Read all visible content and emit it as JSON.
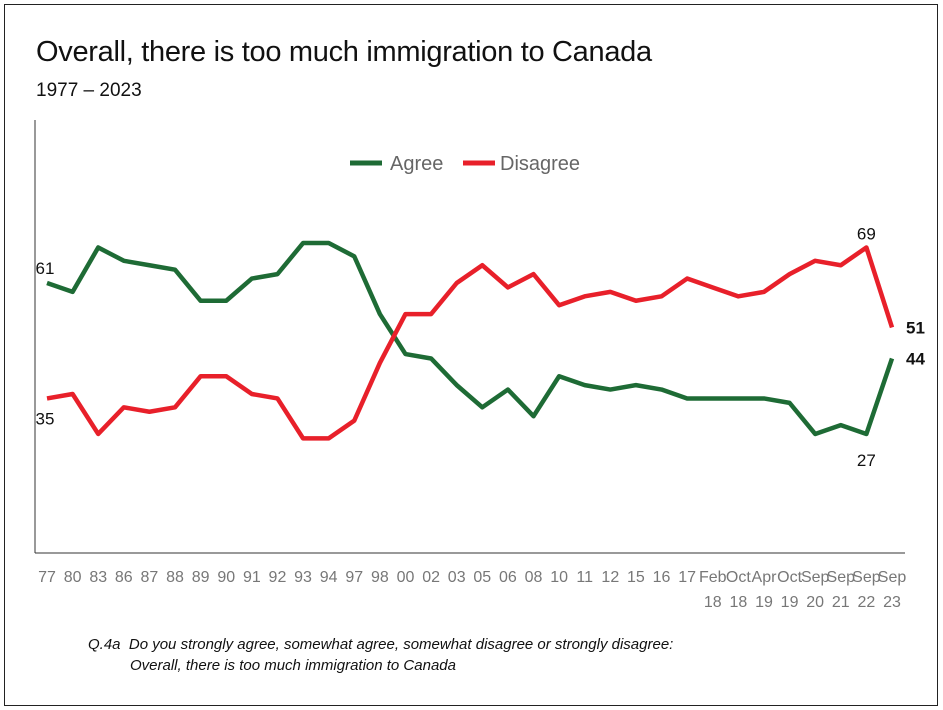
{
  "title": "Overall, there is too much immigration to Canada",
  "subtitle": "1977 – 2023",
  "footnote": {
    "code": "Q.4a",
    "line1": "Do you strongly agree, somewhat agree, somewhat disagree or strongly disagree:",
    "line2": "Overall, there is too much immigration to Canada"
  },
  "chart_data": {
    "type": "line",
    "title": "Overall, there is too much immigration to Canada",
    "subtitle": "1977 – 2023",
    "legend_position": "top-center",
    "grid": false,
    "ylim": [
      0,
      100
    ],
    "categories": [
      [
        "77"
      ],
      [
        "80"
      ],
      [
        "83"
      ],
      [
        "86"
      ],
      [
        "87"
      ],
      [
        "88"
      ],
      [
        "89"
      ],
      [
        "90"
      ],
      [
        "91"
      ],
      [
        "92"
      ],
      [
        "93"
      ],
      [
        "94"
      ],
      [
        "97"
      ],
      [
        "98"
      ],
      [
        "00"
      ],
      [
        "02"
      ],
      [
        "03"
      ],
      [
        "05"
      ],
      [
        "06"
      ],
      [
        "08"
      ],
      [
        "10"
      ],
      [
        "11"
      ],
      [
        "12"
      ],
      [
        "15"
      ],
      [
        "16"
      ],
      [
        "17"
      ],
      [
        "Feb",
        "18"
      ],
      [
        "Oct",
        "18"
      ],
      [
        "Apr",
        "19"
      ],
      [
        "Oct",
        "19"
      ],
      [
        "Sep",
        "20"
      ],
      [
        "Sep",
        "21"
      ],
      [
        "Sep",
        "22"
      ],
      [
        "Sep",
        "23"
      ]
    ],
    "series": [
      {
        "name": "Agree",
        "color": "#1e6b35",
        "values": [
          61,
          59,
          69,
          66,
          65,
          64,
          57,
          57,
          62,
          63,
          70,
          70,
          67,
          54,
          45,
          44,
          38,
          33,
          37,
          31,
          40,
          38,
          37,
          38,
          37,
          35,
          35,
          35,
          35,
          34,
          27,
          29,
          27,
          44
        ]
      },
      {
        "name": "Disagree",
        "color": "#e8202a",
        "values": [
          35,
          36,
          27,
          33,
          32,
          33,
          40,
          40,
          36,
          35,
          26,
          26,
          30,
          43,
          54,
          54,
          61,
          65,
          60,
          63,
          56,
          58,
          59,
          57,
          58,
          62,
          60,
          58,
          59,
          63,
          66,
          65,
          69,
          51
        ]
      }
    ],
    "data_labels": [
      {
        "series": "Agree",
        "index": 0,
        "text": "61",
        "bold": false
      },
      {
        "series": "Disagree",
        "index": 0,
        "text": "35",
        "bold": false
      },
      {
        "series": "Disagree",
        "index": 32,
        "text": "69",
        "bold": false
      },
      {
        "series": "Agree",
        "index": 32,
        "text": "27",
        "bold": false
      },
      {
        "series": "Disagree",
        "index": 33,
        "text": "51",
        "bold": true
      },
      {
        "series": "Agree",
        "index": 33,
        "text": "44",
        "bold": true
      }
    ]
  }
}
